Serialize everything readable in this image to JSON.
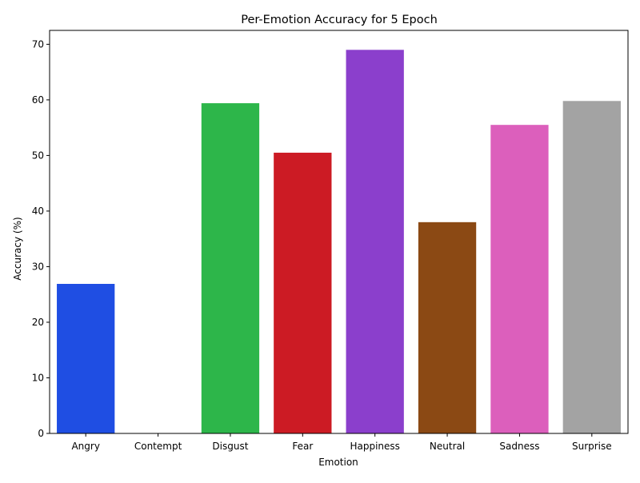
{
  "chart_data": {
    "type": "bar",
    "title": "Per-Emotion Accuracy for 5 Epoch",
    "xlabel": "Emotion",
    "ylabel": "Accuracy (%)",
    "categories": [
      "Angry",
      "Contempt",
      "Disgust",
      "Fear",
      "Happiness",
      "Neutral",
      "Sadness",
      "Surprise"
    ],
    "values": [
      26.9,
      0,
      59.4,
      50.5,
      69.0,
      38.0,
      55.5,
      59.8
    ],
    "colors": [
      "#1f4ee3",
      "#ff7c00",
      "#2db64a",
      "#cc1b24",
      "#8b3fcc",
      "#8b4914",
      "#dc5fbc",
      "#a3a3a3"
    ],
    "ylim": [
      0,
      72.5
    ],
    "yticks": [
      0,
      10,
      20,
      30,
      40,
      50,
      60,
      70
    ],
    "grid": false,
    "legend": "none"
  }
}
